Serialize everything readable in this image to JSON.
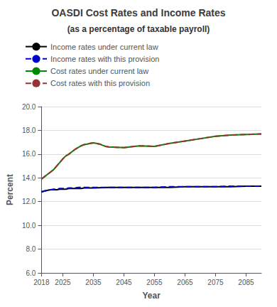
{
  "chart_data": {
    "type": "line",
    "title": "OASDI Cost Rates and Income Rates",
    "subtitle": "(as a percentage of taxable payroll)",
    "xlabel": "Year",
    "ylabel": "Percent",
    "xlim": [
      2018,
      2090
    ],
    "xticks": [
      2018,
      2025,
      2035,
      2045,
      2055,
      2065,
      2075,
      2085
    ],
    "ylim": [
      6.0,
      20.0
    ],
    "yticks": [
      {
        "value": 6.0,
        "label": "6.0"
      },
      {
        "value": 8.0,
        "label": "8.0"
      },
      {
        "value": 10.0,
        "label": "10.0"
      },
      {
        "value": 12.0,
        "label": "12.0"
      },
      {
        "value": 14.0,
        "label": "14.0"
      },
      {
        "value": 16.0,
        "label": "16.0"
      },
      {
        "value": 18.0,
        "label": "18.0"
      },
      {
        "value": 20.0,
        "label": "20.0"
      }
    ],
    "grid": true,
    "legend": "top",
    "series": [
      {
        "name": "Income rates under current law",
        "color": "#000000",
        "line_style": "solid",
        "x": [
          2018,
          2019,
          2020,
          2021,
          2022,
          2023,
          2024,
          2025,
          2026,
          2027,
          2028,
          2029,
          2030,
          2031,
          2032,
          2033,
          2034,
          2035,
          2040,
          2045,
          2050,
          2055,
          2060,
          2065,
          2070,
          2075,
          2080,
          2085,
          2090
        ],
        "values": [
          12.82,
          12.9,
          12.95,
          13.0,
          13.0,
          13.0,
          13.05,
          13.05,
          13.05,
          13.1,
          13.1,
          13.1,
          13.1,
          13.1,
          13.15,
          13.15,
          13.15,
          13.15,
          13.2,
          13.2,
          13.2,
          13.2,
          13.2,
          13.25,
          13.25,
          13.25,
          13.25,
          13.3,
          13.3
        ]
      },
      {
        "name": "Income rates with this provision",
        "color": "#0000cc",
        "line_style": "dashed",
        "x": [
          2018,
          2019,
          2020,
          2021,
          2022,
          2023,
          2024,
          2025,
          2026,
          2027,
          2028,
          2029,
          2030,
          2031,
          2032,
          2033,
          2034,
          2035,
          2040,
          2045,
          2050,
          2055,
          2060,
          2065,
          2070,
          2075,
          2080,
          2085,
          2090
        ],
        "values": [
          12.82,
          12.9,
          12.95,
          13.0,
          13.05,
          13.05,
          13.1,
          13.1,
          13.1,
          13.15,
          13.15,
          13.15,
          13.2,
          13.2,
          13.2,
          13.2,
          13.2,
          13.2,
          13.2,
          13.2,
          13.2,
          13.2,
          13.25,
          13.25,
          13.25,
          13.25,
          13.3,
          13.3,
          13.3
        ]
      },
      {
        "name": "Cost rates under current law",
        "color": "#008800",
        "line_style": "solid",
        "x": [
          2018,
          2019,
          2020,
          2021,
          2022,
          2023,
          2024,
          2025,
          2026,
          2027,
          2028,
          2029,
          2030,
          2031,
          2032,
          2033,
          2034,
          2035,
          2036,
          2037,
          2038,
          2039,
          2040,
          2045,
          2050,
          2055,
          2060,
          2065,
          2070,
          2075,
          2080,
          2085,
          2090
        ],
        "values": [
          13.9,
          14.1,
          14.3,
          14.5,
          14.7,
          15.0,
          15.3,
          15.6,
          15.85,
          16.0,
          16.2,
          16.4,
          16.55,
          16.7,
          16.8,
          16.85,
          16.9,
          16.95,
          16.9,
          16.85,
          16.75,
          16.65,
          16.6,
          16.55,
          16.7,
          16.65,
          16.9,
          17.1,
          17.3,
          17.5,
          17.6,
          17.65,
          17.7
        ]
      },
      {
        "name": "Cost rates with this provision",
        "color": "#993333",
        "line_style": "dashed",
        "x": [
          2018,
          2019,
          2020,
          2021,
          2022,
          2023,
          2024,
          2025,
          2026,
          2027,
          2028,
          2029,
          2030,
          2031,
          2032,
          2033,
          2034,
          2035,
          2036,
          2037,
          2038,
          2039,
          2040,
          2045,
          2050,
          2055,
          2060,
          2065,
          2070,
          2075,
          2080,
          2085,
          2090
        ],
        "values": [
          13.9,
          14.1,
          14.3,
          14.5,
          14.7,
          15.0,
          15.3,
          15.6,
          15.85,
          16.0,
          16.2,
          16.4,
          16.55,
          16.7,
          16.8,
          16.85,
          16.9,
          16.95,
          16.9,
          16.85,
          16.75,
          16.65,
          16.6,
          16.55,
          16.7,
          16.65,
          16.9,
          17.1,
          17.3,
          17.5,
          17.6,
          17.65,
          17.7
        ]
      }
    ]
  }
}
